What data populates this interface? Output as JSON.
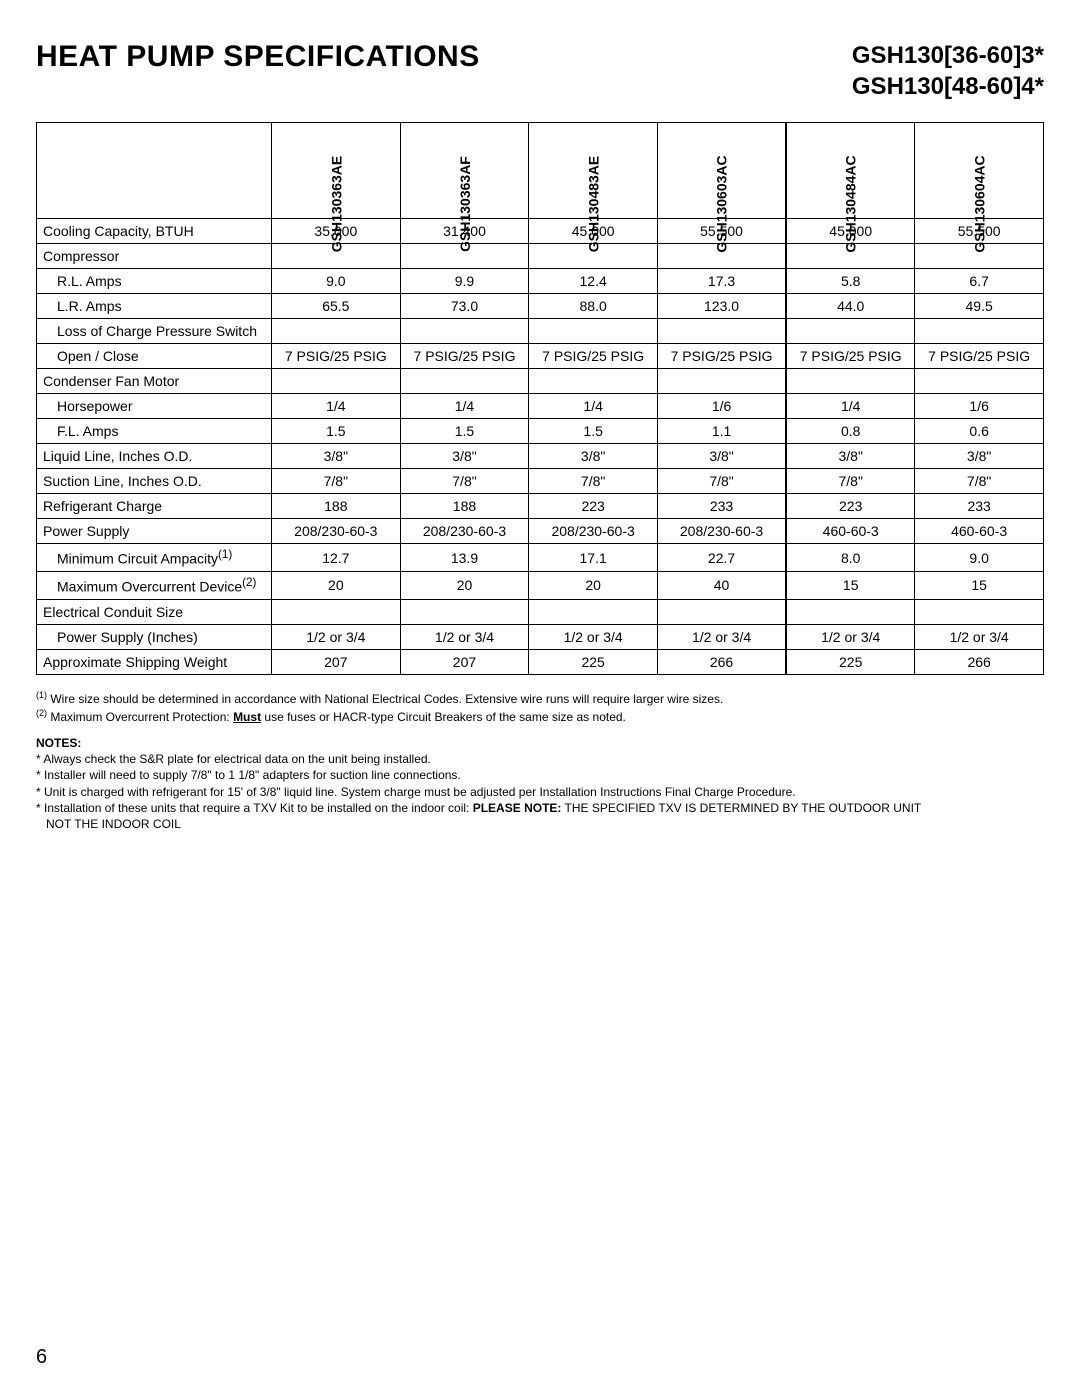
{
  "page_number": "6",
  "header": {
    "title": "HEAT PUMP SPECIFICATIONS",
    "model_line1": "GSH130[36-60]3*",
    "model_line2": "GSH130[48-60]4*"
  },
  "table": {
    "models": [
      "GSH130363AE",
      "GSH130363AF",
      "GSH130483AE",
      "GSH130603AC",
      "GSH130484AC",
      "GSH130604AC"
    ],
    "rows": [
      {
        "label": "Cooling Capacity, BTUH",
        "indent": false,
        "vals": [
          "35,000",
          "31,400",
          "45,000",
          "55,500",
          "45,000",
          "55,500"
        ]
      },
      {
        "label": "Compressor",
        "indent": false,
        "vals": [
          "",
          "",
          "",
          "",
          "",
          ""
        ]
      },
      {
        "label": "R.L. Amps",
        "indent": true,
        "vals": [
          "9.0",
          "9.9",
          "12.4",
          "17.3",
          "5.8",
          "6.7"
        ]
      },
      {
        "label": "L.R. Amps",
        "indent": true,
        "vals": [
          "65.5",
          "73.0",
          "88.0",
          "123.0",
          "44.0",
          "49.5"
        ]
      },
      {
        "label": "Loss of Charge Pressure Switch",
        "indent": true,
        "vals": [
          "",
          "",
          "",
          "",
          "",
          ""
        ]
      },
      {
        "label": "Open / Close",
        "indent": true,
        "vals": [
          "7 PSIG/25 PSIG",
          "7 PSIG/25 PSIG",
          "7 PSIG/25 PSIG",
          "7 PSIG/25 PSIG",
          "7 PSIG/25 PSIG",
          "7 PSIG/25 PSIG"
        ]
      },
      {
        "label": "Condenser Fan Motor",
        "indent": false,
        "vals": [
          "",
          "",
          "",
          "",
          "",
          ""
        ]
      },
      {
        "label": "Horsepower",
        "indent": true,
        "vals": [
          "1/4",
          "1/4",
          "1/4",
          "1/6",
          "1/4",
          "1/6"
        ]
      },
      {
        "label": "F.L. Amps",
        "indent": true,
        "vals": [
          "1.5",
          "1.5",
          "1.5",
          "1.1",
          "0.8",
          "0.6"
        ]
      },
      {
        "label": "Liquid Line, Inches O.D.",
        "indent": false,
        "vals": [
          "3/8\"",
          "3/8\"",
          "3/8\"",
          "3/8\"",
          "3/8\"",
          "3/8\""
        ]
      },
      {
        "label": "Suction Line, Inches O.D.",
        "indent": false,
        "vals": [
          "7/8\"",
          "7/8\"",
          "7/8\"",
          "7/8\"",
          "7/8\"",
          "7/8\""
        ]
      },
      {
        "label": "Refrigerant Charge",
        "indent": false,
        "vals": [
          "188",
          "188",
          "223",
          "233",
          "223",
          "233"
        ]
      },
      {
        "label": "Power Supply",
        "indent": false,
        "vals": [
          "208/230-60-3",
          "208/230-60-3",
          "208/230-60-3",
          "208/230-60-3",
          "460-60-3",
          "460-60-3"
        ]
      },
      {
        "label": "Minimum Circuit Ampacity",
        "sup": "(1)",
        "indent": true,
        "vals": [
          "12.7",
          "13.9",
          "17.1",
          "22.7",
          "8.0",
          "9.0"
        ]
      },
      {
        "label": "Maximum Overcurrent Device",
        "sup": "(2)",
        "indent": true,
        "vals": [
          "20",
          "20",
          "20",
          "40",
          "15",
          "15"
        ]
      },
      {
        "label": "Electrical Conduit Size",
        "indent": false,
        "vals": [
          "",
          "",
          "",
          "",
          "",
          ""
        ]
      },
      {
        "label": "Power Supply (Inches)",
        "indent": true,
        "vals": [
          "1/2 or 3/4",
          "1/2 or 3/4",
          "1/2 or 3/4",
          "1/2 or 3/4",
          "1/2 or 3/4",
          "1/2 or 3/4"
        ]
      },
      {
        "label": "Approximate Shipping Weight",
        "indent": false,
        "vals": [
          "207",
          "207",
          "225",
          "266",
          "225",
          "266"
        ]
      }
    ]
  },
  "footnotes": {
    "fn1": "Wire size should be determined in accordance with National Electrical Codes. Extensive wire runs will require larger wire sizes.",
    "fn2_pre": "Maximum Overcurrent Protection: ",
    "fn2_must": "Must",
    "fn2_post": " use fuses or HACR-type Circuit Breakers of the same size as noted."
  },
  "notes": {
    "title": "NOTES:",
    "n1": "* Always check the S&R plate for electrical data on the unit being installed.",
    "n2": "* Installer will need to supply 7/8\" to 1 1/8\" adapters for suction line connections.",
    "n3": "* Unit is charged with refrigerant for 15' of 3/8\" liquid line. System charge must be adjusted per Installation Instructions Final Charge Procedure.",
    "n4_pre": "* Installation of these units that require a TXV Kit to be installed on the indoor coil: ",
    "n4_bold": "PLEASE NOTE:",
    "n4_post": " THE SPECIFIED TXV IS DETERMINED BY THE OUTDOOR UNIT",
    "n4_line2": "NOT THE INDOOR COIL"
  }
}
